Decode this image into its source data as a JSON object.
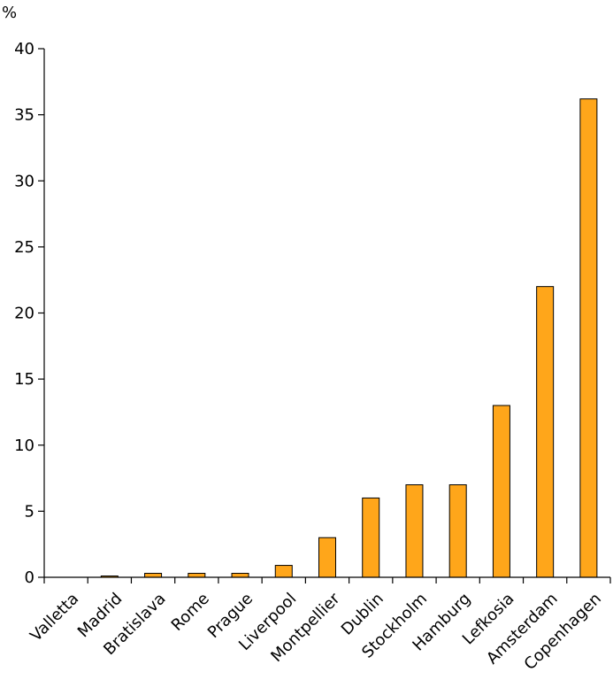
{
  "chart_data": {
    "type": "bar",
    "title": "",
    "xlabel": "",
    "ylabel": "%",
    "ylim": [
      0,
      40
    ],
    "yticks": [
      0,
      5,
      10,
      15,
      20,
      25,
      30,
      35,
      40
    ],
    "grid": false,
    "legend": "none",
    "bar_color": "#FFA61A",
    "bar_edge_color": "#000000",
    "categories": [
      "Valletta",
      "Madrid",
      "Bratislava",
      "Rome",
      "Prague",
      "Liverpool",
      "Montpellier",
      "Dublin",
      "Stockholm",
      "Hamburg",
      "Lefkosia",
      "Amsterdam",
      "Copenhagen"
    ],
    "values": [
      0,
      0.1,
      0.3,
      0.3,
      0.3,
      0.9,
      3,
      6,
      7,
      7,
      13,
      22,
      36.2
    ]
  }
}
